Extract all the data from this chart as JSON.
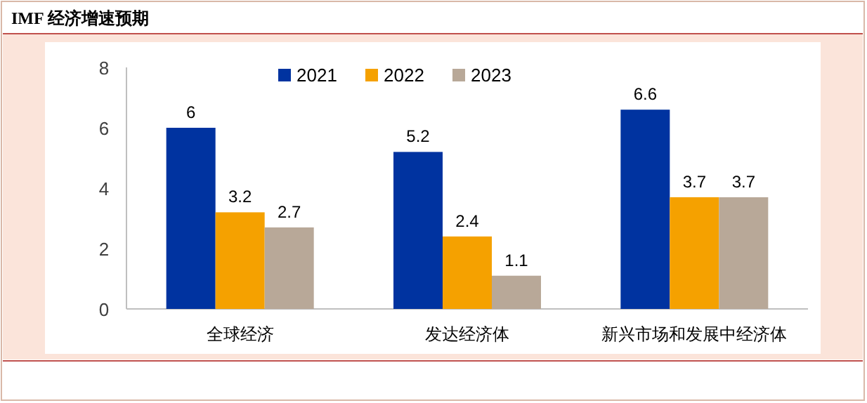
{
  "chart_data": {
    "type": "bar",
    "title": "IMF 经济增速预期",
    "categories": [
      "全球经济",
      "发达经济体",
      "新兴市场和发展中经济体"
    ],
    "series": [
      {
        "name": "2021",
        "color": "#0033a0",
        "values": [
          6,
          5.2,
          6.6
        ]
      },
      {
        "name": "2022",
        "color": "#f5a100",
        "values": [
          3.2,
          2.4,
          3.7
        ]
      },
      {
        "name": "2023",
        "color": "#b8a898",
        "values": [
          2.7,
          1.1,
          3.7
        ]
      }
    ],
    "ylim": [
      0,
      8
    ],
    "yticks": [
      0,
      2,
      4,
      6,
      8
    ],
    "data_labels": true,
    "legend": "top",
    "grid": false
  }
}
